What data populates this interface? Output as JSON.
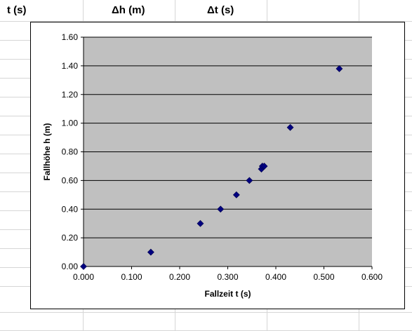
{
  "sheet": {
    "headers": [
      "t (s)",
      "Δh (m)",
      "Δt (s)"
    ]
  },
  "colors": {
    "plot_area": "#c0c0c0",
    "marker": "#000080",
    "sheet_grid": "#d6d6d6"
  },
  "chart_data": {
    "type": "scatter",
    "title": "",
    "xlabel": "Fallzeit t (s)",
    "ylabel": "Fallhöhe h (m)",
    "xlim": [
      0,
      0.6
    ],
    "ylim": [
      0,
      1.6
    ],
    "x_ticks": [
      "0.000",
      "0.100",
      "0.200",
      "0.300",
      "0.400",
      "0.500",
      "0.600"
    ],
    "y_ticks": [
      "0.00",
      "0.20",
      "0.40",
      "0.60",
      "0.80",
      "1.00",
      "1.20",
      "1.40",
      "1.60"
    ],
    "grid": "horizontal",
    "legend": "none",
    "marker": "diamond",
    "points": [
      {
        "x": 0.0,
        "y": 0.0
      },
      {
        "x": 0.14,
        "y": 0.1
      },
      {
        "x": 0.243,
        "y": 0.3
      },
      {
        "x": 0.285,
        "y": 0.4
      },
      {
        "x": 0.318,
        "y": 0.5
      },
      {
        "x": 0.345,
        "y": 0.6
      },
      {
        "x": 0.37,
        "y": 0.68
      },
      {
        "x": 0.372,
        "y": 0.7
      },
      {
        "x": 0.376,
        "y": 0.7
      },
      {
        "x": 0.43,
        "y": 0.97
      },
      {
        "x": 0.532,
        "y": 1.38
      }
    ]
  }
}
